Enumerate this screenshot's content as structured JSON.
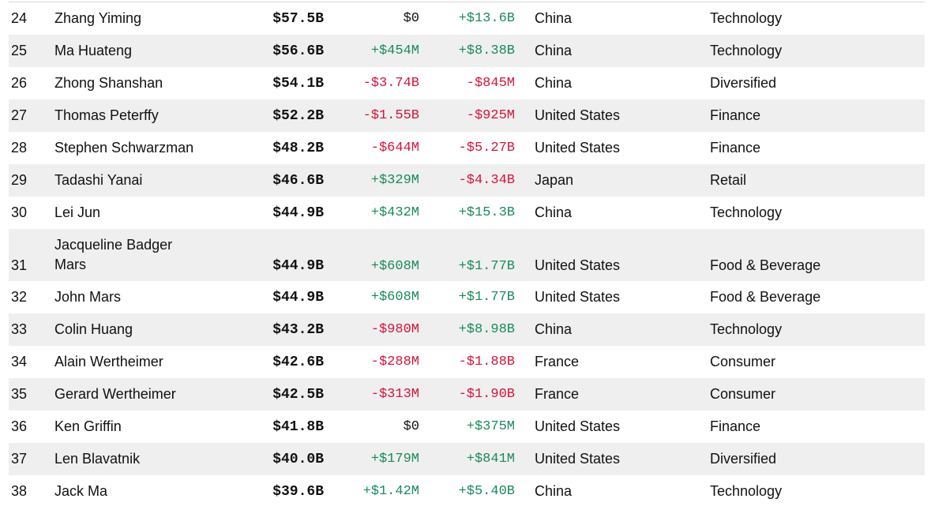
{
  "table": {
    "rows": [
      {
        "rank": "24",
        "name": "Zhang Yiming",
        "net_worth": "$57.5B",
        "last_change": "$0",
        "ytd_change": "+$13.6B",
        "country": "China",
        "industry": "Technology"
      },
      {
        "rank": "25",
        "name": "Ma Huateng",
        "net_worth": "$56.6B",
        "last_change": "+$454M",
        "ytd_change": "+$8.38B",
        "country": "China",
        "industry": "Technology"
      },
      {
        "rank": "26",
        "name": "Zhong Shanshan",
        "net_worth": "$54.1B",
        "last_change": "-$3.74B",
        "ytd_change": "-$845M",
        "country": "China",
        "industry": "Diversified"
      },
      {
        "rank": "27",
        "name": "Thomas Peterffy",
        "net_worth": "$52.2B",
        "last_change": "-$1.55B",
        "ytd_change": "-$925M",
        "country": "United States",
        "industry": "Finance"
      },
      {
        "rank": "28",
        "name": "Stephen Schwarzman",
        "net_worth": "$48.2B",
        "last_change": "-$644M",
        "ytd_change": "-$5.27B",
        "country": "United States",
        "industry": "Finance"
      },
      {
        "rank": "29",
        "name": "Tadashi Yanai",
        "net_worth": "$46.6B",
        "last_change": "+$329M",
        "ytd_change": "-$4.34B",
        "country": "Japan",
        "industry": "Retail"
      },
      {
        "rank": "30",
        "name": "Lei Jun",
        "net_worth": "$44.9B",
        "last_change": "+$432M",
        "ytd_change": "+$15.3B",
        "country": "China",
        "industry": "Technology"
      },
      {
        "rank": "31",
        "name": "Jacqueline Badger Mars",
        "net_worth": "$44.9B",
        "last_change": "+$608M",
        "ytd_change": "+$1.77B",
        "country": "United States",
        "industry": "Food & Beverage"
      },
      {
        "rank": "32",
        "name": "John Mars",
        "net_worth": "$44.9B",
        "last_change": "+$608M",
        "ytd_change": "+$1.77B",
        "country": "United States",
        "industry": "Food & Beverage"
      },
      {
        "rank": "33",
        "name": "Colin Huang",
        "net_worth": "$43.2B",
        "last_change": "-$980M",
        "ytd_change": "+$8.98B",
        "country": "China",
        "industry": "Technology"
      },
      {
        "rank": "34",
        "name": "Alain Wertheimer",
        "net_worth": "$42.6B",
        "last_change": "-$288M",
        "ytd_change": "-$1.88B",
        "country": "France",
        "industry": "Consumer"
      },
      {
        "rank": "35",
        "name": "Gerard Wertheimer",
        "net_worth": "$42.5B",
        "last_change": "-$313M",
        "ytd_change": "-$1.90B",
        "country": "France",
        "industry": "Consumer"
      },
      {
        "rank": "36",
        "name": "Ken Griffin",
        "net_worth": "$41.8B",
        "last_change": "$0",
        "ytd_change": "+$375M",
        "country": "United States",
        "industry": "Finance"
      },
      {
        "rank": "37",
        "name": "Len Blavatnik",
        "net_worth": "$40.0B",
        "last_change": "+$179M",
        "ytd_change": "+$841M",
        "country": "United States",
        "industry": "Diversified"
      },
      {
        "rank": "38",
        "name": "Jack Ma",
        "net_worth": "$39.6B",
        "last_change": "+$1.42M",
        "ytd_change": "+$5.40B",
        "country": "China",
        "industry": "Technology"
      }
    ],
    "colors": {
      "positive": "#1a8a5a",
      "negative": "#d4143a",
      "neutral": "#111111",
      "stripe": "#efefef"
    }
  }
}
